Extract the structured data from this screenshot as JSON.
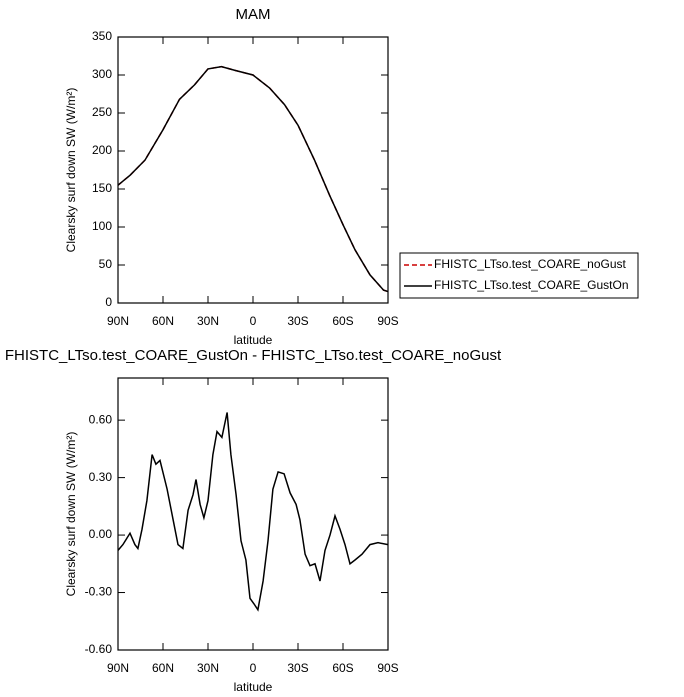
{
  "chart_data": [
    {
      "type": "line",
      "title": "MAM",
      "ylabel": "Clearsky surf down SW (W/m²)",
      "xlabel": "latitude",
      "xlim": [
        90,
        -90
      ],
      "xticks": [
        {
          "value": 90,
          "label": "90N"
        },
        {
          "value": 60,
          "label": "60N"
        },
        {
          "value": 30,
          "label": "30N"
        },
        0,
        {
          "value": -30,
          "label": "30S"
        },
        {
          "value": -60,
          "label": "60S"
        },
        {
          "value": -90,
          "label": "90S"
        }
      ],
      "ylim": [
        0,
        350
      ],
      "yticks": [
        0,
        50,
        100,
        150,
        200,
        250,
        300,
        350
      ],
      "x": [
        90,
        82,
        72,
        60,
        49,
        39,
        30,
        21,
        12,
        0,
        -11,
        -21,
        -30,
        -41,
        -51,
        -60,
        -68,
        -78,
        -87,
        -90
      ],
      "series": [
        {
          "name": "FHISTC_LTso.test_COARE_noGust",
          "color": "#cc0000",
          "dash": true,
          "values": [
            155,
            168,
            188,
            228,
            268,
            287,
            308,
            311,
            306,
            300,
            283,
            261,
            234,
            188,
            142,
            103,
            70,
            37,
            17,
            15
          ]
        },
        {
          "name": "FHISTC_LTso.test_COARE_GustOn",
          "color": "#000000",
          "dash": false,
          "values": [
            155,
            168,
            188,
            228,
            268,
            287,
            308,
            311,
            306,
            300,
            283,
            261,
            234,
            188,
            142,
            103,
            70,
            37,
            17,
            15
          ]
        }
      ]
    },
    {
      "type": "line",
      "title": "FHISTC_LTso.test_COARE_GustOn - FHISTC_LTso.test_COARE_noGust",
      "ylabel": "Clearsky surf down SW (W/m²)",
      "xlabel": "latitude",
      "xlim": [
        90,
        -90
      ],
      "xticks": [
        {
          "value": 90,
          "label": "90N"
        },
        {
          "value": 60,
          "label": "60N"
        },
        {
          "value": 30,
          "label": "30N"
        },
        0,
        {
          "value": -30,
          "label": "30S"
        },
        {
          "value": -60,
          "label": "60S"
        },
        {
          "value": -90,
          "label": "90S"
        }
      ],
      "ylim": [
        -0.6,
        0.82
      ],
      "yticks": [
        {
          "value": -0.6,
          "label": "-0.60"
        },
        {
          "value": -0.3,
          "label": "-0.30"
        },
        {
          "value": 0,
          "label": "0.00"
        },
        {
          "value": 0.3,
          "label": "0.30"
        },
        {
          "value": 0.6,
          "label": "0.60"
        }
      ],
      "x": [
        90,
        86.7,
        82,
        78.7,
        76.7,
        74,
        70.7,
        67.3,
        64.7,
        62,
        57.3,
        53.3,
        50,
        46.7,
        43.3,
        40,
        38,
        35.3,
        32.7,
        30,
        26.7,
        24,
        20.7,
        17.3,
        14.7,
        11.3,
        8,
        4.7,
        2,
        -0.7,
        -3.3,
        -6.7,
        -10,
        -13.3,
        -16.7,
        -20.7,
        -24.7,
        -28.7,
        -31.3,
        -34.7,
        -38,
        -41.3,
        -44.7,
        -48,
        -51.3,
        -54.7,
        -58,
        -61.3,
        -64.7,
        -68,
        -72.7,
        -78,
        -83.3,
        -90
      ],
      "series": [
        {
          "color": "#000000",
          "dash": false,
          "values": [
            -0.08,
            -0.05,
            0.01,
            -0.05,
            -0.07,
            0.03,
            0.18,
            0.42,
            0.37,
            0.39,
            0.24,
            0.08,
            -0.05,
            -0.07,
            0.13,
            0.21,
            0.29,
            0.16,
            0.09,
            0.18,
            0.42,
            0.54,
            0.51,
            0.64,
            0.42,
            0.21,
            -0.03,
            -0.13,
            -0.33,
            -0.36,
            -0.39,
            -0.24,
            -0.03,
            0.24,
            0.33,
            0.32,
            0.22,
            0.16,
            0.08,
            -0.1,
            -0.16,
            -0.15,
            -0.24,
            -0.08,
            0,
            0.1,
            0.03,
            -0.05,
            -0.15,
            -0.13,
            -0.1,
            -0.05,
            -0.04,
            -0.05
          ]
        }
      ]
    }
  ]
}
